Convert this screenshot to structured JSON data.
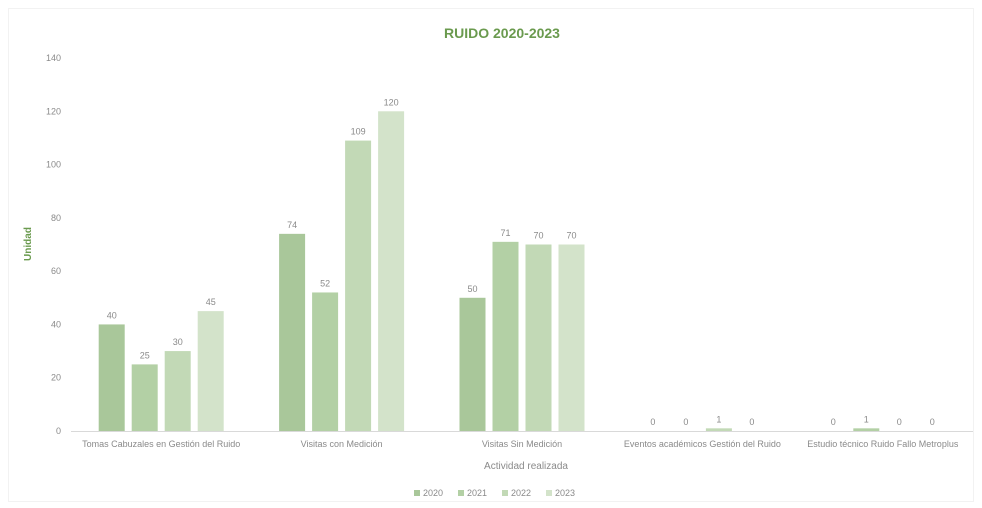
{
  "chart_data": {
    "type": "bar",
    "title": "RUIDO 2020-2023",
    "xlabel": "Actividad realizada",
    "ylabel": "Unidad",
    "ylim": [
      0,
      140
    ],
    "yticks": [
      0,
      20,
      40,
      60,
      80,
      100,
      120,
      140
    ],
    "grid": false,
    "legend_position": "bottom",
    "categories": [
      "Tomas Cabuzales en Gestión del Ruido",
      "Visitas con Medición",
      "Visitas Sin Medición",
      "Eventos académicos Gestión del Ruido",
      "Estudio técnico Ruido Fallo Metroplus"
    ],
    "series": [
      {
        "name": "2020",
        "color": "#a9c79a",
        "values": [
          40,
          74,
          50,
          0,
          0
        ]
      },
      {
        "name": "2021",
        "color": "#b3d0a5",
        "values": [
          25,
          52,
          71,
          0,
          1
        ]
      },
      {
        "name": "2022",
        "color": "#c2d9b6",
        "values": [
          30,
          109,
          70,
          1,
          0
        ]
      },
      {
        "name": "2023",
        "color": "#d3e3ca",
        "values": [
          45,
          120,
          70,
          0,
          0
        ]
      }
    ],
    "colors": {
      "title": "#6a9a4e",
      "axis_text": "#8a8a8a",
      "axis_line": "#d9d9d9"
    }
  }
}
